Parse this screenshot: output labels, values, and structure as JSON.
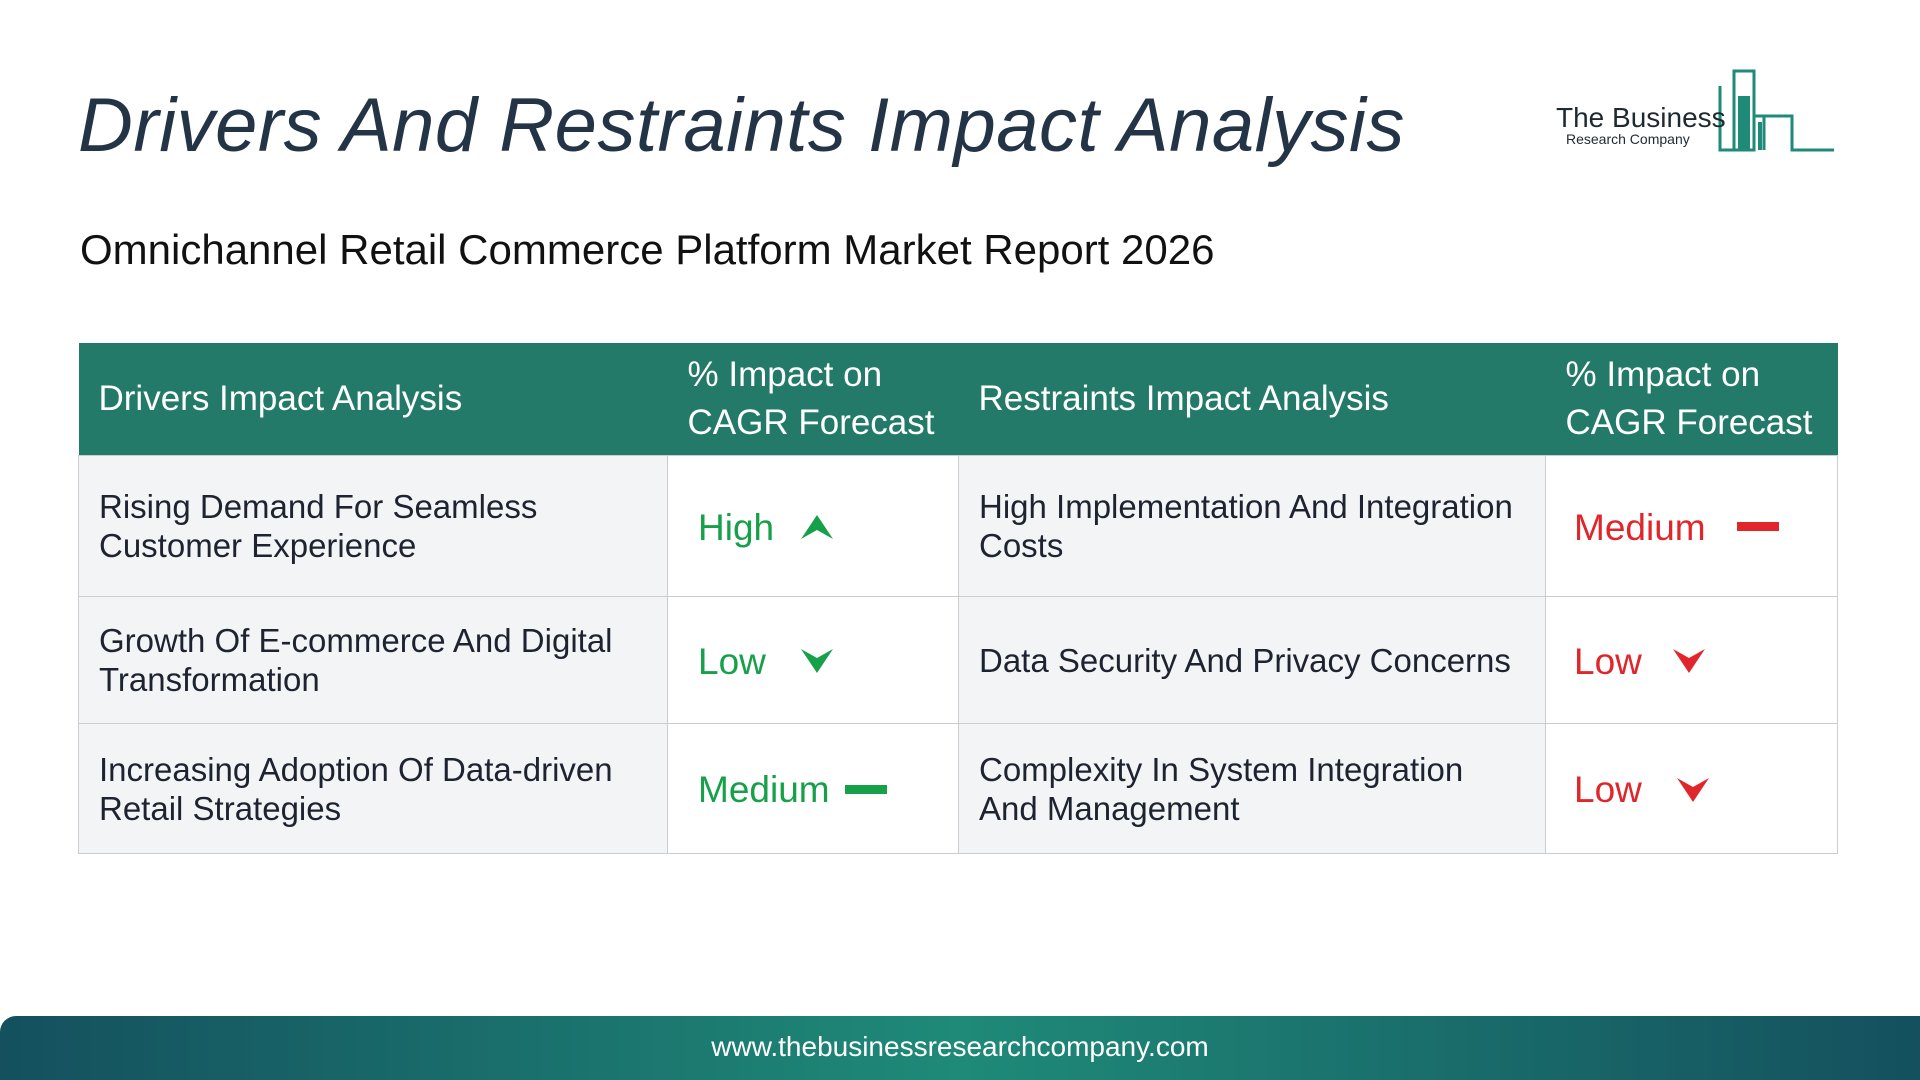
{
  "header": {
    "title": "Drivers And Restraints Impact Analysis",
    "subtitle": "Omnichannel Retail Commerce Platform Market Report 2026"
  },
  "logo": {
    "line1": "The Business",
    "line2": "Research Company",
    "icon": "bar-chart-building-icon",
    "color": "#1f8a78"
  },
  "table": {
    "headers": {
      "drivers": "Drivers Impact Analysis",
      "drivers_impact": "% Impact on CAGR Forecast",
      "restraints": "Restraints Impact Analysis",
      "restraints_impact": "% Impact on CAGR Forecast"
    },
    "header_color": "#247a68",
    "rows": [
      {
        "driver": "Rising Demand For Seamless Customer Experience",
        "driver_impact": "High",
        "driver_icon": "arrow-up-icon",
        "restraint": "High Implementation And Integration Costs",
        "restraint_impact": "Medium",
        "restraint_icon": "dash-icon"
      },
      {
        "driver": "Growth Of E-commerce And Digital Transformation",
        "driver_impact": "Low",
        "driver_icon": "arrow-down-icon",
        "restraint": "Data Security And Privacy Concerns",
        "restraint_impact": "Low",
        "restraint_icon": "arrow-down-icon"
      },
      {
        "driver": "Increasing Adoption Of Data-driven Retail Strategies",
        "driver_impact": "Medium",
        "driver_icon": "dash-icon",
        "restraint": "Complexity In System Integration And Management",
        "restraint_impact": "Low",
        "restraint_icon": "arrow-down-icon"
      }
    ],
    "driver_color": "#17a04a",
    "restraint_color": "#e0262a"
  },
  "footer": {
    "url": "www.thebusinessresearchcompany.com"
  }
}
